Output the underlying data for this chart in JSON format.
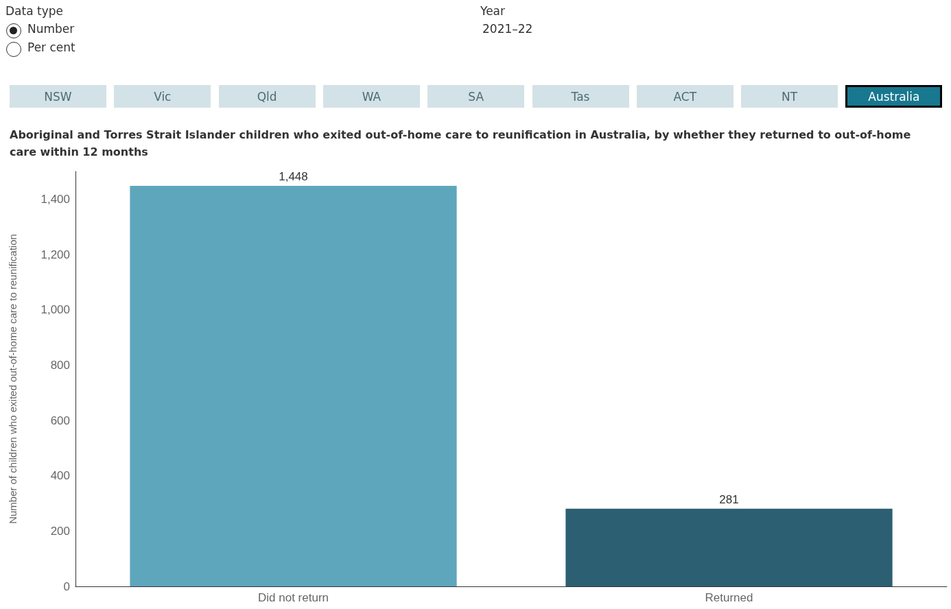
{
  "chart_data": {
    "type": "bar",
    "title": "Aboriginal and Torres Strait Islander children who exited out-of-home care to reunification in Australia, by whether they returned to out-of-home care within 12 months",
    "ylabel": "Number of children who exited out-of-home care to reunification",
    "categories": [
      "Did not return",
      "Returned"
    ],
    "values": [
      1448,
      281
    ],
    "colors": [
      "#5ea6bc",
      "#2c5f72"
    ],
    "value_labels": [
      "1,448",
      "281"
    ],
    "ylim": [
      0,
      1500
    ],
    "yticks": [
      0,
      200,
      400,
      600,
      800,
      {
        "value": 1000,
        "label": "1,000"
      },
      {
        "value": 1200,
        "label": "1,200"
      },
      {
        "value": 1400,
        "label": "1,400"
      }
    ],
    "grid": false,
    "annotations": [
      "Data type",
      "Number",
      "Per cent",
      "Year",
      "2021–22",
      "NSW",
      "Vic",
      "Qld",
      "WA",
      "SA",
      "Tas",
      "ACT",
      "NT",
      "Australia"
    ]
  }
}
